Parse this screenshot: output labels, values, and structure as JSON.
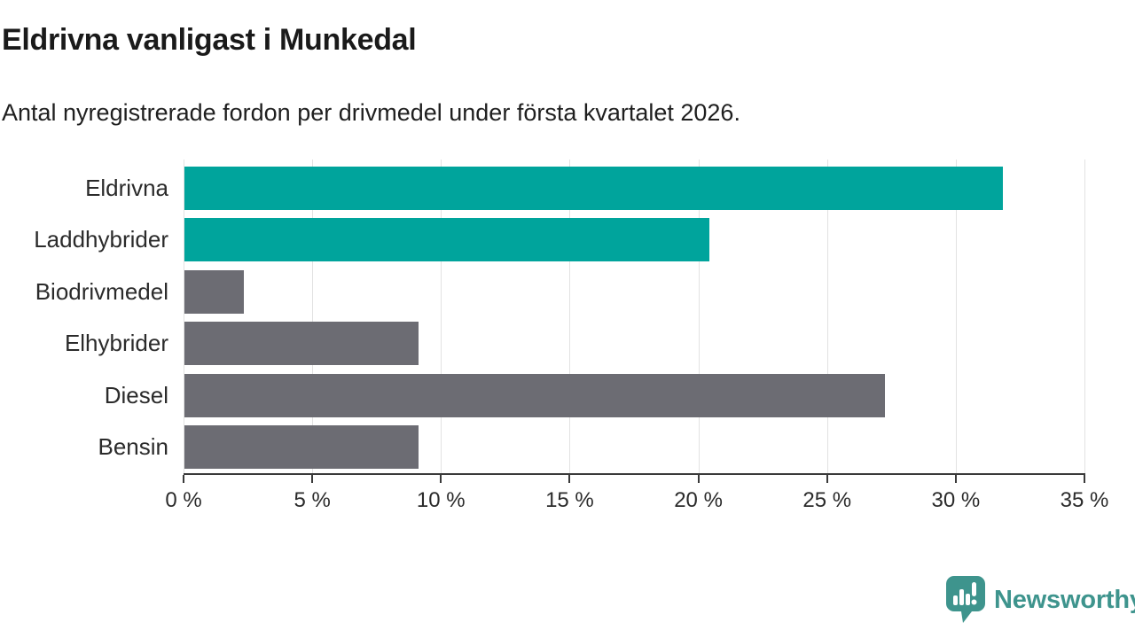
{
  "chart_data": {
    "type": "bar",
    "orientation": "horizontal",
    "title": "Eldrivna vanligast i Munkedal",
    "subtitle": "Antal nyregistrerade fordon per drivmedel under första kvartalet 2026.",
    "categories": [
      "Eldrivna",
      "Laddhybrider",
      "Biodrivmedel",
      "Elhybrider",
      "Diesel",
      "Bensin"
    ],
    "values": [
      31.8,
      20.4,
      2.3,
      9.1,
      27.2,
      9.1
    ],
    "unit": "%",
    "xlim": [
      0,
      35
    ],
    "xticks": [
      0,
      5,
      10,
      15,
      20,
      25,
      30,
      35
    ],
    "xtick_labels": [
      "0 %",
      "5 %",
      "10 %",
      "15 %",
      "20 %",
      "25 %",
      "30 %",
      "35 %"
    ],
    "bar_colors": [
      "#00a49c",
      "#00a49c",
      "#6c6c73",
      "#6c6c73",
      "#6c6c73",
      "#6c6c73"
    ],
    "highlight_color": "#00a49c",
    "default_color": "#6c6c73",
    "grid": true,
    "legend": "none"
  },
  "branding": {
    "logo_text": "Newsworthy",
    "logo_color": "#3e948d",
    "logo_icon": "bar-chart-speech-bubble-icon"
  }
}
